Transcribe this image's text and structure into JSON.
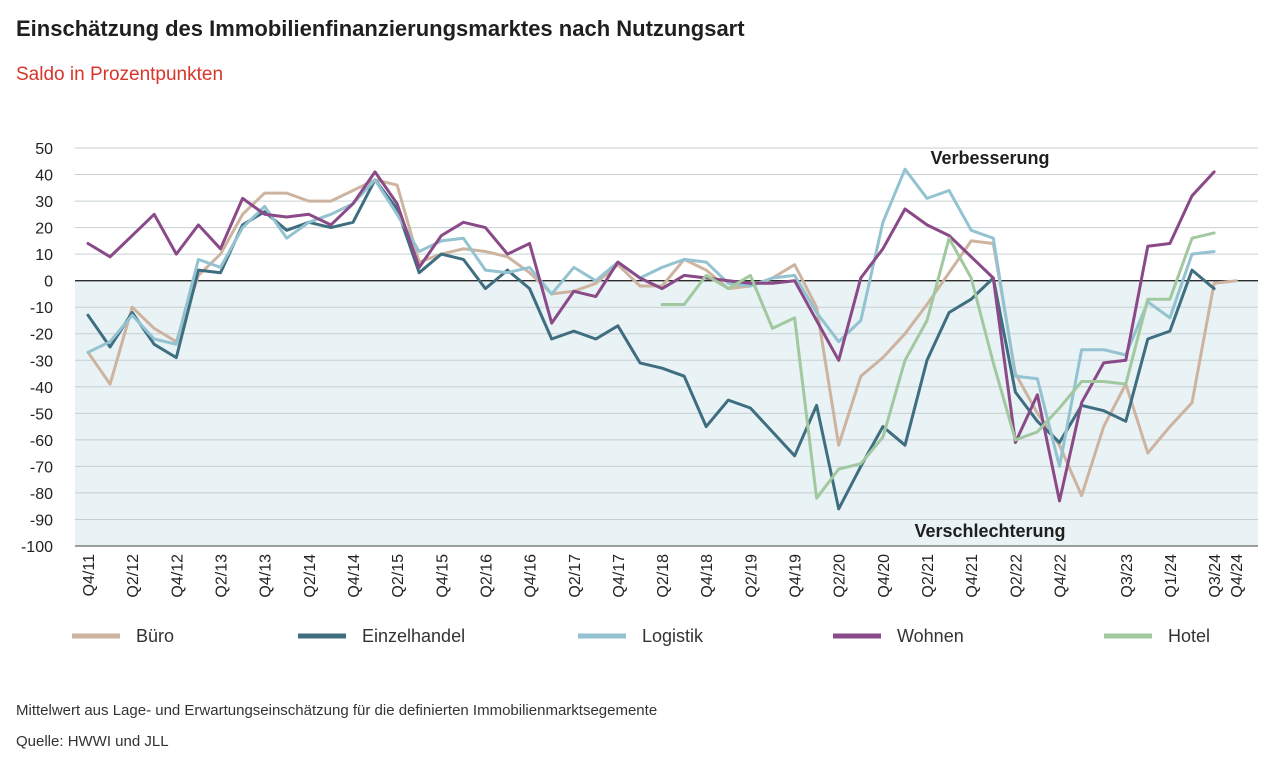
{
  "title": "Einschätzung des Immobilienfinanzierungsmarktes nach Nutzungsart",
  "subtitle": "Saldo in Prozentpunkten",
  "footnote": "Mittelwert aus Lage- und Erwartungseinschätzung für die definierten Immobilienmarktsegemente",
  "source": "Quelle: HWWI und JLL",
  "chart_data": {
    "type": "line",
    "ylim": [
      -100,
      50
    ],
    "yticks": [
      50,
      40,
      30,
      20,
      10,
      0,
      -10,
      -20,
      -30,
      -40,
      -50,
      -60,
      -70,
      -80,
      -90,
      -100
    ],
    "x": [
      "Q4/11",
      "Q1/12",
      "Q2/12",
      "Q3/12",
      "Q4/12",
      "Q1/13",
      "Q2/13",
      "Q3/13",
      "Q4/13",
      "Q1/14",
      "Q2/14",
      "Q3/14",
      "Q4/14",
      "Q1/15",
      "Q2/15",
      "Q3/15",
      "Q4/15",
      "Q1/16",
      "Q2/16",
      "Q3/16",
      "Q4/16",
      "Q1/17",
      "Q2/17",
      "Q3/17",
      "Q4/17",
      "Q1/18",
      "Q2/18",
      "Q3/18",
      "Q4/18",
      "Q1/19",
      "Q2/19",
      "Q3/19",
      "Q4/19",
      "Q1/20",
      "Q2/20",
      "Q3/20",
      "Q4/20",
      "Q1/21",
      "Q2/21",
      "Q3/21",
      "Q4/21",
      "Q1/22",
      "Q2/22",
      "Q3/22",
      "Q4/22",
      "Q1/23",
      "Q2/23",
      "Q3/23",
      "Q4/23",
      "Q1/24",
      "Q2/24",
      "Q3/24",
      "Q4/24"
    ],
    "xtick_labels": [
      "Q4/11",
      "Q2/12",
      "Q4/12",
      "Q2/13",
      "Q4/13",
      "Q2/14",
      "Q4/14",
      "Q2/15",
      "Q4/15",
      "Q2/16",
      "Q4/16",
      "Q2/17",
      "Q4/17",
      "Q2/18",
      "Q4/18",
      "Q2/19",
      "Q4/19",
      "Q2/20",
      "Q4/20",
      "Q2/21",
      "Q4/21",
      "Q2/22",
      "Q4/22",
      "Q3/23",
      "Q1/24",
      "Q3/24",
      "Q4/24"
    ],
    "annotations": {
      "upper": "Verbesserung",
      "lower": "Verschlechterung"
    },
    "grid": true,
    "legend_position": "bottom",
    "series": [
      {
        "name": "Büro",
        "color": "#cdb4a0",
        "values": [
          -27,
          -39,
          -10,
          -18,
          -23,
          2,
          10,
          25,
          33,
          33,
          30,
          30,
          34,
          38,
          36,
          7,
          10,
          12,
          11,
          9,
          3,
          -5,
          -4,
          -1,
          6,
          -2,
          -2,
          8,
          4,
          -3,
          -2,
          1,
          6,
          -10,
          -62,
          -36,
          -29,
          -20,
          -9,
          3,
          15,
          14,
          -35,
          -50,
          -62,
          -81,
          -55,
          -39,
          -65,
          -55,
          -46,
          -1,
          0
        ]
      },
      {
        "name": "Einzelhandel",
        "color": "#3e6e80",
        "values": [
          -13,
          -25,
          -12,
          -24,
          -29,
          4,
          3,
          21,
          26,
          19,
          22,
          20,
          22,
          38,
          27,
          3,
          10,
          8,
          -3,
          4,
          -3,
          -22,
          -19,
          -22,
          -17,
          -31,
          -33,
          -36,
          -55,
          -45,
          -48,
          -57,
          -66,
          -47,
          -86,
          -70,
          -55,
          -62,
          -30,
          -12,
          -7,
          1,
          -42,
          -53,
          -61,
          -47,
          -49,
          -53,
          -22,
          -19,
          4,
          -3,
          null
        ]
      },
      {
        "name": "Logistik",
        "color": "#93c3d1",
        "values": [
          -27,
          -23,
          -13,
          -22,
          -24,
          8,
          5,
          20,
          28,
          16,
          22,
          25,
          29,
          38,
          25,
          11,
          15,
          16,
          4,
          3,
          5,
          -5,
          5,
          0,
          7,
          1,
          5,
          8,
          7,
          -1,
          -2,
          1,
          2,
          -12,
          -23,
          -15,
          22,
          42,
          31,
          34,
          19,
          16,
          -36,
          -37,
          -70,
          -26,
          -26,
          -28,
          -8,
          -14,
          10,
          11,
          null
        ]
      },
      {
        "name": "Wohnen",
        "color": "#8a4a88",
        "values": [
          14,
          9,
          17,
          25,
          10,
          21,
          12,
          31,
          25,
          24,
          25,
          21,
          29,
          41,
          29,
          5,
          17,
          22,
          20,
          10,
          14,
          -16,
          -4,
          -6,
          7,
          1,
          -3,
          2,
          1,
          0,
          -1,
          -1,
          0,
          -15,
          -30,
          1,
          12,
          27,
          21,
          17,
          9,
          1,
          -61,
          -43,
          -83,
          -46,
          -31,
          -30,
          13,
          14,
          32,
          41,
          null
        ]
      },
      {
        "name": "Hotel",
        "color": "#a2c8a0",
        "values": [
          null,
          null,
          null,
          null,
          null,
          null,
          null,
          null,
          null,
          null,
          null,
          null,
          null,
          null,
          null,
          null,
          null,
          null,
          null,
          null,
          null,
          null,
          null,
          null,
          null,
          null,
          -9,
          -9,
          2,
          -3,
          2,
          -18,
          -14,
          -82,
          -71,
          -69,
          -59,
          -30,
          -15,
          16,
          1,
          -31,
          -60,
          -57,
          -48,
          -38,
          -38,
          -39,
          -7,
          -7,
          16,
          18,
          null
        ]
      }
    ]
  }
}
